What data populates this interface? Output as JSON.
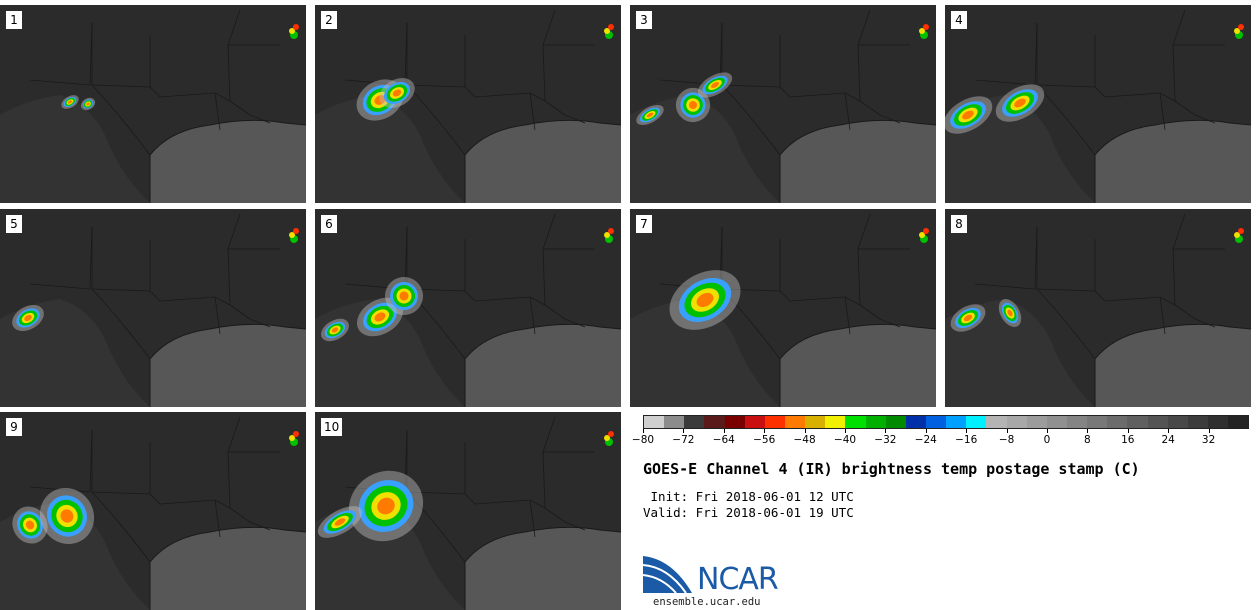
{
  "panels": [
    {
      "label": "1"
    },
    {
      "label": "2"
    },
    {
      "label": "3"
    },
    {
      "label": "4"
    },
    {
      "label": "5"
    },
    {
      "label": "6"
    },
    {
      "label": "7"
    },
    {
      "label": "8"
    },
    {
      "label": "9"
    },
    {
      "label": "10"
    }
  ],
  "colorbar": {
    "colors": [
      "#cfcfcf",
      "#8c8c8c",
      "#3a3a3a",
      "#5a1a1a",
      "#7a0000",
      "#c81010",
      "#ff3000",
      "#ff7a00",
      "#d8b000",
      "#f0f000",
      "#00e000",
      "#00b000",
      "#008a00",
      "#0030a8",
      "#0060e0",
      "#00a0ff",
      "#00f0ff",
      "#b4b4b4",
      "#a8a8a8",
      "#9c9c9c",
      "#909090",
      "#848484",
      "#787878",
      "#6c6c6c",
      "#606060",
      "#545454",
      "#484848",
      "#3c3c3c",
      "#303030",
      "#242424"
    ],
    "tick_labels": [
      "−80",
      "−72",
      "−64",
      "−56",
      "−48",
      "−40",
      "−32",
      "−24",
      "−16",
      "−8",
      "0",
      "8",
      "16",
      "24",
      "32"
    ],
    "tick_values": [
      -80,
      -72,
      -64,
      -56,
      -48,
      -40,
      -32,
      -24,
      -16,
      -8,
      0,
      8,
      16,
      24,
      32
    ],
    "min": -80,
    "max": 40
  },
  "title": "GOES-E Channel 4 (IR) brightness temp postage stamp (C)",
  "init": " Init: Fri 2018-06-01 12 UTC",
  "valid": "Valid: Fri 2018-06-01 19 UTC",
  "logo_text": "NCAR",
  "website": "ensemble.ucar.edu"
}
